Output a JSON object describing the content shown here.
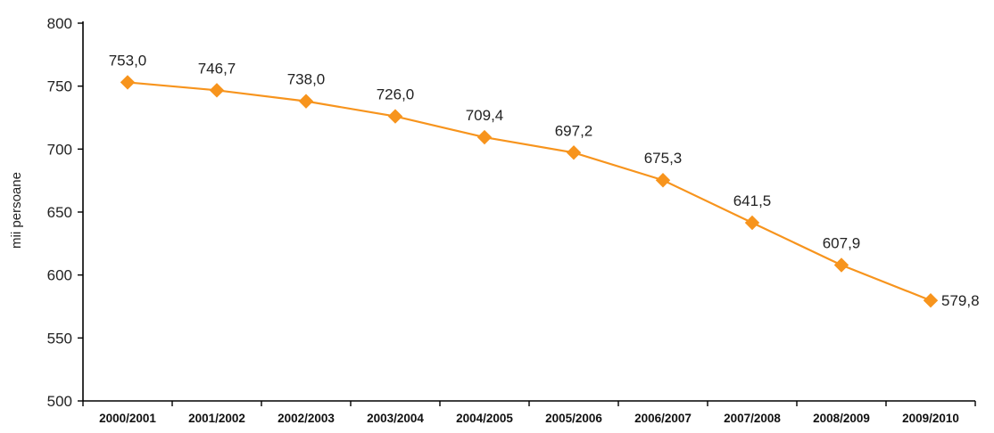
{
  "chart_data": {
    "type": "line",
    "title": "",
    "xlabel": "",
    "ylabel": "mii persoane",
    "categories": [
      "2000/2001",
      "2001/2002",
      "2002/2003",
      "2003/2004",
      "2004/2005",
      "2005/2006",
      "2006/2007",
      "2007/2008",
      "2008/2009",
      "2009/2010"
    ],
    "series": [
      {
        "values": [
          753.0,
          746.7,
          738.0,
          726.0,
          709.4,
          697.2,
          675.3,
          641.5,
          607.9,
          579.8
        ],
        "labels": [
          "753,0",
          "746,7",
          "738,0",
          "726,0",
          "709,4",
          "697,2",
          "675,3",
          "641,5",
          "607,9",
          "579,8"
        ],
        "color": "#F7941D",
        "marker": "diamond"
      }
    ],
    "ylim": [
      500,
      800
    ],
    "yticks": [
      500,
      550,
      600,
      650,
      700,
      750,
      800
    ],
    "grid": false,
    "legend": "none"
  }
}
